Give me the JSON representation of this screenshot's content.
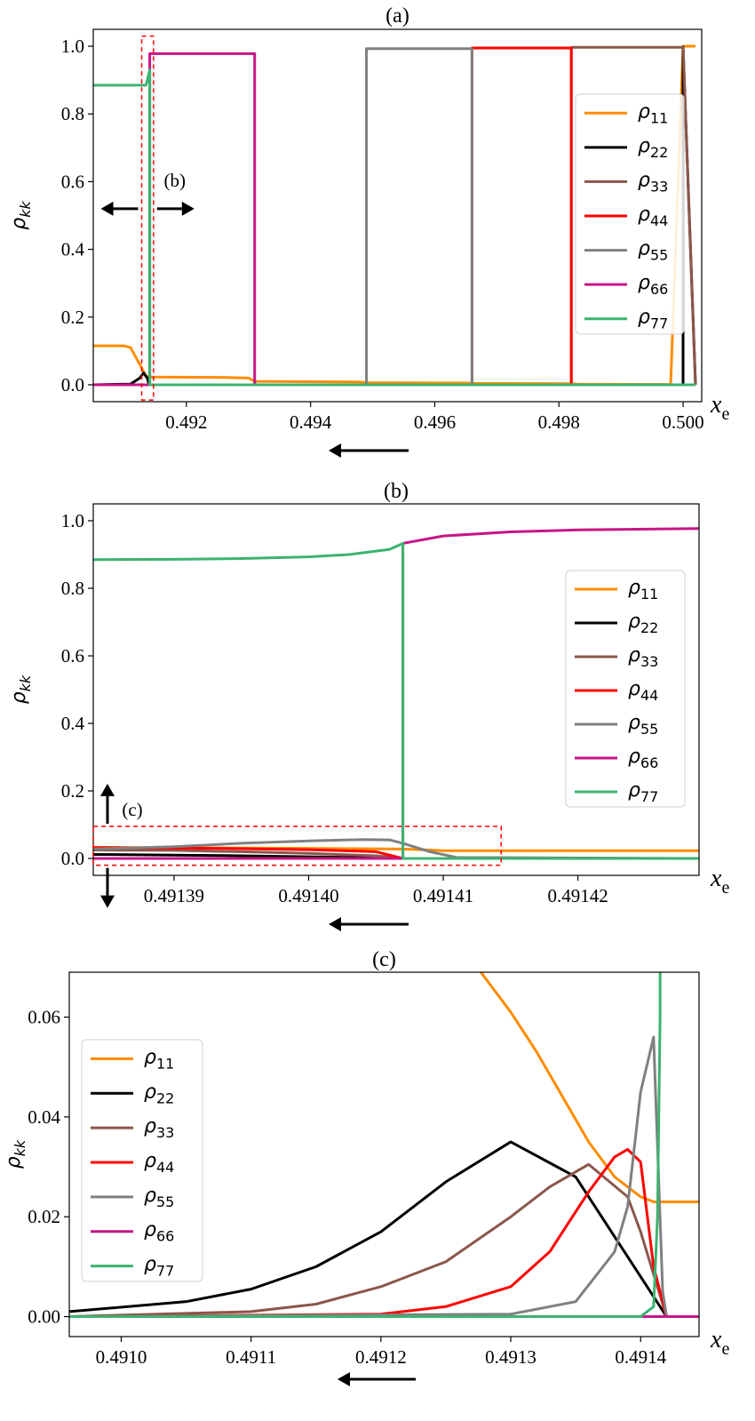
{
  "chart_data": [
    {
      "id": "a",
      "type": "line",
      "title": "(a)",
      "xlabel": "x",
      "xlabel_sub": "e",
      "ylabel": "ρ",
      "ylabel_sub": "kk",
      "xlim": [
        0.4905,
        0.5003
      ],
      "ylim": [
        -0.05,
        1.05
      ],
      "xticks": [
        0.492,
        0.494,
        0.496,
        0.498,
        0.5
      ],
      "xtick_labels": [
        "0.492",
        "0.494",
        "0.496",
        "0.498",
        "0.500"
      ],
      "yticks": [
        0.0,
        0.2,
        0.4,
        0.6,
        0.8,
        1.0
      ],
      "ytick_labels": [
        "0.0",
        "0.2",
        "0.4",
        "0.6",
        "0.8",
        "1.0"
      ],
      "legend_position": "right",
      "annotation_label": "(b)",
      "series": [
        {
          "name": "ρ11",
          "sub": "11",
          "color": "#ff8c00",
          "x": [
            0.4905,
            0.491,
            0.4911,
            0.49125,
            0.49135,
            0.4914,
            0.4925,
            0.493,
            0.4931,
            0.4948,
            0.4949,
            0.4965,
            0.4966,
            0.4982,
            0.4983,
            0.4998,
            0.5,
            0.5002
          ],
          "y": [
            0.115,
            0.115,
            0.11,
            0.06,
            0.025,
            0.023,
            0.022,
            0.02,
            0.01,
            0.008,
            0.006,
            0.005,
            0.004,
            0.003,
            0.002,
            0.001,
            1.0,
            1.0
          ]
        },
        {
          "name": "ρ22",
          "sub": "22",
          "color": "#000000",
          "x": [
            0.4905,
            0.4911,
            0.49125,
            0.49131,
            0.49137,
            0.4914,
            0.4998,
            0.5,
            0.5,
            0.5002
          ],
          "y": [
            0.0,
            0.002,
            0.02,
            0.035,
            0.02,
            0.0,
            0.0,
            0.0,
            0.998,
            0.0
          ]
        },
        {
          "name": "ρ33",
          "sub": "33",
          "color": "#8c564b",
          "x": [
            0.4905,
            0.4914,
            0.4982,
            0.4982,
            0.5,
            0.5002
          ],
          "y": [
            0.0,
            0.0,
            0.0,
            0.997,
            0.997,
            0.0
          ]
        },
        {
          "name": "ρ44",
          "sub": "44",
          "color": "#ff0000",
          "x": [
            0.4905,
            0.4914,
            0.4966,
            0.4966,
            0.4982,
            0.4982,
            0.5002
          ],
          "y": [
            0.0,
            0.0,
            0.0,
            0.995,
            0.995,
            0.0,
            0.0
          ]
        },
        {
          "name": "ρ55",
          "sub": "55",
          "color": "#808080",
          "x": [
            0.4905,
            0.4914,
            0.4949,
            0.4949,
            0.4966,
            0.4966,
            0.5002
          ],
          "y": [
            0.0,
            0.0,
            0.0,
            0.993,
            0.993,
            0.0,
            0.0
          ]
        },
        {
          "name": "ρ66",
          "sub": "66",
          "color": "#c71585",
          "x": [
            0.4905,
            0.49141,
            0.49141,
            0.4931,
            0.4931,
            0.4949,
            0.5002
          ],
          "y": [
            0.0,
            0.0,
            0.978,
            0.978,
            0.0,
            0.0,
            0.0
          ]
        },
        {
          "name": "ρ77",
          "sub": "77",
          "color": "#3cb371",
          "x": [
            0.4905,
            0.49135,
            0.49141,
            0.49141,
            0.5002
          ],
          "y": [
            0.885,
            0.885,
            0.93,
            0.0,
            0.0
          ]
        }
      ]
    },
    {
      "id": "b",
      "type": "line",
      "title": "(b)",
      "xlabel": "x",
      "xlabel_sub": "e",
      "ylabel": "ρ",
      "ylabel_sub": "kk",
      "xlim": [
        0.491384,
        0.491429
      ],
      "ylim": [
        -0.05,
        1.05
      ],
      "xticks": [
        0.49139,
        0.4914,
        0.49141,
        0.49142
      ],
      "xtick_labels": [
        "0.49139",
        "0.49140",
        "0.49141",
        "0.49142"
      ],
      "yticks": [
        0.0,
        0.2,
        0.4,
        0.6,
        0.8,
        1.0
      ],
      "ytick_labels": [
        "0.0",
        "0.2",
        "0.4",
        "0.6",
        "0.8",
        "1.0"
      ],
      "legend_position": "right",
      "annotation_label": "(c)",
      "series": [
        {
          "name": "ρ11",
          "sub": "11",
          "color": "#ff8c00",
          "x": [
            0.491384,
            0.4914,
            0.491407,
            0.491409,
            0.49141,
            0.491429
          ],
          "y": [
            0.033,
            0.03,
            0.028,
            0.025,
            0.023,
            0.023
          ]
        },
        {
          "name": "ρ22",
          "sub": "22",
          "color": "#000000",
          "x": [
            0.491384,
            0.49139,
            0.491395,
            0.4914,
            0.491405,
            0.491407,
            0.491429
          ],
          "y": [
            0.012,
            0.01,
            0.008,
            0.005,
            0.002,
            0.0,
            0.0
          ]
        },
        {
          "name": "ρ33",
          "sub": "33",
          "color": "#8c564b",
          "x": [
            0.491384,
            0.49139,
            0.491395,
            0.4914,
            0.491405,
            0.491407,
            0.491429
          ],
          "y": [
            0.025,
            0.024,
            0.02,
            0.015,
            0.008,
            0.0,
            0.0
          ]
        },
        {
          "name": "ρ44",
          "sub": "44",
          "color": "#ff0000",
          "x": [
            0.491384,
            0.49139,
            0.491395,
            0.4914,
            0.491405,
            0.491407,
            0.491429
          ],
          "y": [
            0.032,
            0.031,
            0.029,
            0.026,
            0.02,
            0.0,
            0.0
          ]
        },
        {
          "name": "ρ55",
          "sub": "55",
          "color": "#808080",
          "x": [
            0.491384,
            0.49139,
            0.491395,
            0.4914,
            0.491404,
            0.491406,
            0.491407,
            0.491409,
            0.491411,
            0.491429
          ],
          "y": [
            0.028,
            0.035,
            0.045,
            0.052,
            0.056,
            0.055,
            0.045,
            0.02,
            0.003,
            0.0
          ]
        },
        {
          "name": "ρ66",
          "sub": "66",
          "color": "#c71585",
          "x": [
            0.491384,
            0.491407,
            0.491407,
            0.49141,
            0.491415,
            0.49142,
            0.491429
          ],
          "y": [
            0.0,
            0.0,
            0.933,
            0.955,
            0.967,
            0.973,
            0.977
          ]
        },
        {
          "name": "ρ77",
          "sub": "77",
          "color": "#3cb371",
          "x": [
            0.491384,
            0.49139,
            0.491395,
            0.4914,
            0.491403,
            0.491406,
            0.491407,
            0.491407,
            0.491429
          ],
          "y": [
            0.885,
            0.886,
            0.888,
            0.893,
            0.9,
            0.915,
            0.933,
            0.0,
            0.0
          ]
        }
      ]
    },
    {
      "id": "c",
      "type": "line",
      "title": "(c)",
      "xlabel": "x",
      "xlabel_sub": "e",
      "ylabel": "ρ",
      "ylabel_sub": "kk",
      "xlim": [
        0.49096,
        0.491445
      ],
      "ylim": [
        -0.004,
        0.069
      ],
      "xticks": [
        0.491,
        0.4911,
        0.4912,
        0.4913,
        0.4914
      ],
      "xtick_labels": [
        "0.4910",
        "0.4911",
        "0.4912",
        "0.4913",
        "0.4914"
      ],
      "yticks": [
        0.0,
        0.02,
        0.04,
        0.06
      ],
      "ytick_labels": [
        "0.00",
        "0.02",
        "0.04",
        "0.06"
      ],
      "legend_position": "left",
      "series": [
        {
          "name": "ρ11",
          "sub": "11",
          "color": "#ff8c00",
          "x": [
            0.491277,
            0.4913,
            0.49132,
            0.49134,
            0.49136,
            0.49138,
            0.4914,
            0.49141,
            0.491445
          ],
          "y": [
            0.069,
            0.061,
            0.053,
            0.044,
            0.035,
            0.028,
            0.024,
            0.023,
            0.023
          ]
        },
        {
          "name": "ρ22",
          "sub": "22",
          "color": "#000000",
          "x": [
            0.49096,
            0.49105,
            0.4911,
            0.49115,
            0.4912,
            0.49125,
            0.4913,
            0.49135,
            0.4914,
            0.49142,
            0.491445
          ],
          "y": [
            0.001,
            0.003,
            0.0055,
            0.01,
            0.017,
            0.027,
            0.035,
            0.028,
            0.008,
            0.0,
            0.0
          ]
        },
        {
          "name": "ρ33",
          "sub": "33",
          "color": "#8c564b",
          "x": [
            0.49096,
            0.4911,
            0.49115,
            0.4912,
            0.49125,
            0.4913,
            0.49133,
            0.49136,
            0.49139,
            0.4914,
            0.49142,
            0.491445
          ],
          "y": [
            0.0,
            0.001,
            0.0025,
            0.006,
            0.011,
            0.02,
            0.026,
            0.0305,
            0.024,
            0.017,
            0.0,
            0.0
          ]
        },
        {
          "name": "ρ44",
          "sub": "44",
          "color": "#ff0000",
          "x": [
            0.49096,
            0.4912,
            0.49125,
            0.4913,
            0.49133,
            0.49136,
            0.49138,
            0.49139,
            0.4914,
            0.49141,
            0.49142,
            0.491445
          ],
          "y": [
            0.0,
            0.0005,
            0.002,
            0.006,
            0.013,
            0.025,
            0.032,
            0.0335,
            0.031,
            0.01,
            0.0,
            0.0
          ]
        },
        {
          "name": "ρ55",
          "sub": "55",
          "color": "#808080",
          "x": [
            0.49096,
            0.4913,
            0.49135,
            0.49138,
            0.49139,
            0.4914,
            0.49141,
            0.491417,
            0.49142,
            0.491445
          ],
          "y": [
            0.0,
            0.0005,
            0.003,
            0.013,
            0.022,
            0.045,
            0.056,
            0.005,
            0.0,
            0.0
          ]
        },
        {
          "name": "ρ66",
          "sub": "66",
          "color": "#c71585",
          "x": [
            0.49096,
            0.491445
          ],
          "y": [
            0.0,
            0.0
          ]
        },
        {
          "name": "ρ77",
          "sub": "77",
          "color": "#3cb371",
          "x": [
            0.49096,
            0.4914,
            0.49141,
            0.491413,
            0.491415,
            0.491415
          ],
          "y": [
            0.0,
            0.0,
            0.002,
            0.02,
            0.06,
            0.069
          ]
        }
      ]
    }
  ]
}
